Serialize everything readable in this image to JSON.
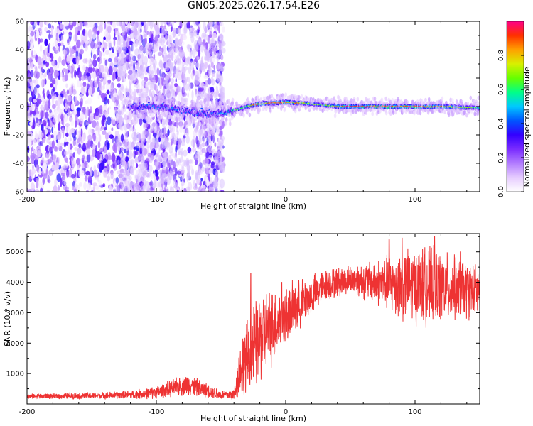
{
  "figure": {
    "title": "GN05.2025.026.17.54.E26"
  },
  "chart_data": [
    {
      "type": "heatmap",
      "title": "GN05.2025.026.17.54.E26",
      "xlabel": "Height of straight line (km)",
      "ylabel": "Frequency (Hz)",
      "xlim": [
        -200,
        150
      ],
      "ylim": [
        -60,
        60
      ],
      "x_ticks": [
        "-200",
        "-100",
        "0",
        "100"
      ],
      "y_ticks": [
        "60",
        "40",
        "20",
        "0",
        "-20",
        "-40",
        "-60"
      ],
      "colorbar": {
        "label": "Normalized spectral amplitude",
        "range": [
          0.0,
          1.0
        ],
        "ticks": [
          "0.0",
          "0.2",
          "0.4",
          "0.6",
          "0.8"
        ],
        "colormap": [
          "#ffffff",
          "#e6ccff",
          "#b27cff",
          "#7a2cff",
          "#3300ff",
          "#0055ff",
          "#00c8ff",
          "#00ff88",
          "#66ff00",
          "#d8f000",
          "#ffa000",
          "#ff3000",
          "#ff0088"
        ]
      },
      "ridge": [
        {
          "x": -120,
          "freq": 0
        },
        {
          "x": -100,
          "freq": 0
        },
        {
          "x": -80,
          "freq": -3
        },
        {
          "x": -60,
          "freq": -5
        },
        {
          "x": -50,
          "freq": -5
        },
        {
          "x": -40,
          "freq": -3
        },
        {
          "x": -30,
          "freq": 0
        },
        {
          "x": -20,
          "freq": 2
        },
        {
          "x": 0,
          "freq": 3
        },
        {
          "x": 20,
          "freq": 2
        },
        {
          "x": 40,
          "freq": 0
        },
        {
          "x": 80,
          "freq": 0
        },
        {
          "x": 120,
          "freq": 0
        },
        {
          "x": 150,
          "freq": -1
        }
      ],
      "ridge_peak_amplitude": [
        {
          "x": -120,
          "amp": 0.3
        },
        {
          "x": -100,
          "amp": 0.4
        },
        {
          "x": -80,
          "amp": 0.35
        },
        {
          "x": -55,
          "amp": 0.35
        },
        {
          "x": -45,
          "amp": 0.5
        },
        {
          "x": -30,
          "amp": 0.7
        },
        {
          "x": -20,
          "amp": 0.9
        },
        {
          "x": 0,
          "amp": 0.95
        },
        {
          "x": 30,
          "amp": 0.6
        },
        {
          "x": 45,
          "amp": 1.0
        },
        {
          "x": 100,
          "amp": 1.0
        },
        {
          "x": 125,
          "amp": 0.9
        },
        {
          "x": 150,
          "amp": 0.5
        }
      ]
    },
    {
      "type": "line",
      "xlabel": "Height of straight line (km)",
      "ylabel": "SNR (10 * v/v)",
      "xlim": [
        -200,
        150
      ],
      "ylim": [
        0,
        5600
      ],
      "x_ticks": [
        "-200",
        "-100",
        "0",
        "100"
      ],
      "y_ticks": [
        "5000",
        "4000",
        "3000",
        "2000",
        "1000"
      ],
      "color": "#ee3333",
      "envelope": [
        {
          "x": -200,
          "mean": 250,
          "spread": 80
        },
        {
          "x": -150,
          "mean": 270,
          "spread": 100
        },
        {
          "x": -120,
          "mean": 300,
          "spread": 130
        },
        {
          "x": -100,
          "mean": 380,
          "spread": 200
        },
        {
          "x": -85,
          "mean": 550,
          "spread": 280
        },
        {
          "x": -75,
          "mean": 650,
          "spread": 350
        },
        {
          "x": -65,
          "mean": 500,
          "spread": 250
        },
        {
          "x": -50,
          "mean": 300,
          "spread": 150
        },
        {
          "x": -40,
          "mean": 300,
          "spread": 180
        },
        {
          "x": -35,
          "mean": 1200,
          "spread": 900
        },
        {
          "x": -25,
          "mean": 1800,
          "spread": 1400
        },
        {
          "x": -15,
          "mean": 2400,
          "spread": 1300
        },
        {
          "x": 0,
          "mean": 2900,
          "spread": 900
        },
        {
          "x": 15,
          "mean": 3400,
          "spread": 700
        },
        {
          "x": 30,
          "mean": 3900,
          "spread": 500
        },
        {
          "x": 50,
          "mean": 4100,
          "spread": 450
        },
        {
          "x": 70,
          "mean": 4000,
          "spread": 700
        },
        {
          "x": 90,
          "mean": 3900,
          "spread": 1100
        },
        {
          "x": 110,
          "mean": 3900,
          "spread": 1200
        },
        {
          "x": 130,
          "mean": 3800,
          "spread": 1000
        },
        {
          "x": 150,
          "mean": 3700,
          "spread": 800
        }
      ],
      "peaks": [
        {
          "x": -27,
          "y": 4300
        },
        {
          "x": -3,
          "y": 4000
        },
        {
          "x": 80,
          "y": 5400
        },
        {
          "x": 90,
          "y": 5450
        },
        {
          "x": 115,
          "y": 5500
        },
        {
          "x": 135,
          "y": 5000
        }
      ]
    }
  ]
}
